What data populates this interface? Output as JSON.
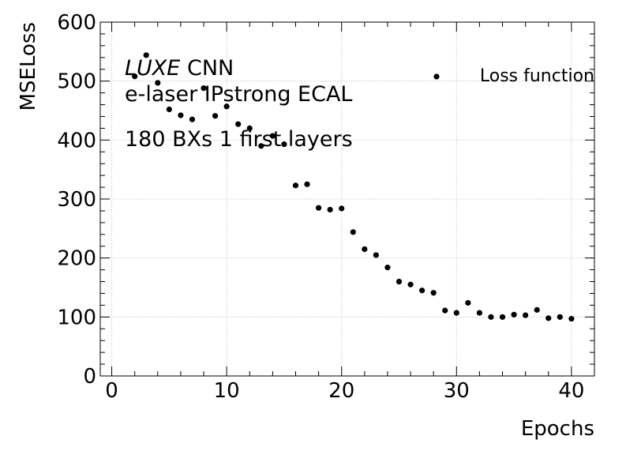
{
  "chart_data": {
    "type": "scatter",
    "xlabel": "Epochs",
    "ylabel": "MSELoss",
    "xlim": [
      -1,
      42
    ],
    "ylim": [
      0,
      600
    ],
    "x_ticks": [
      0,
      10,
      20,
      30,
      40
    ],
    "y_ticks": [
      0,
      100,
      200,
      300,
      400,
      500,
      600
    ],
    "x_tick_labels": [
      "0",
      "10",
      "20",
      "30",
      "40"
    ],
    "y_tick_labels": [
      "0",
      "100",
      "200",
      "300",
      "400",
      "500",
      "600"
    ],
    "grid": true,
    "legend_position": "top-right",
    "annotation": {
      "experiment": "LUXE",
      "line1_rest": "CNN",
      "line2": "e-laser IPstrong ECAL",
      "line3": "180 BXs 1 first layers"
    },
    "series": [
      {
        "name": "Loss function",
        "color": "#000000",
        "x": [
          2,
          3,
          4,
          5,
          6,
          7,
          8,
          9,
          10,
          11,
          12,
          13,
          14,
          15,
          16,
          17,
          18,
          19,
          20,
          21,
          22,
          23,
          24,
          25,
          26,
          27,
          28,
          29,
          30,
          31,
          32,
          33,
          34,
          35,
          36,
          37,
          38,
          39,
          40
        ],
        "y": [
          508,
          544,
          497,
          452,
          442,
          435,
          488,
          441,
          457,
          427,
          420,
          390,
          407,
          393,
          323,
          325,
          285,
          282,
          284,
          244,
          215,
          205,
          184,
          160,
          155,
          145,
          141,
          111,
          107,
          124,
          107,
          100,
          100,
          104,
          103,
          112,
          98,
          100,
          97
        ]
      }
    ]
  }
}
